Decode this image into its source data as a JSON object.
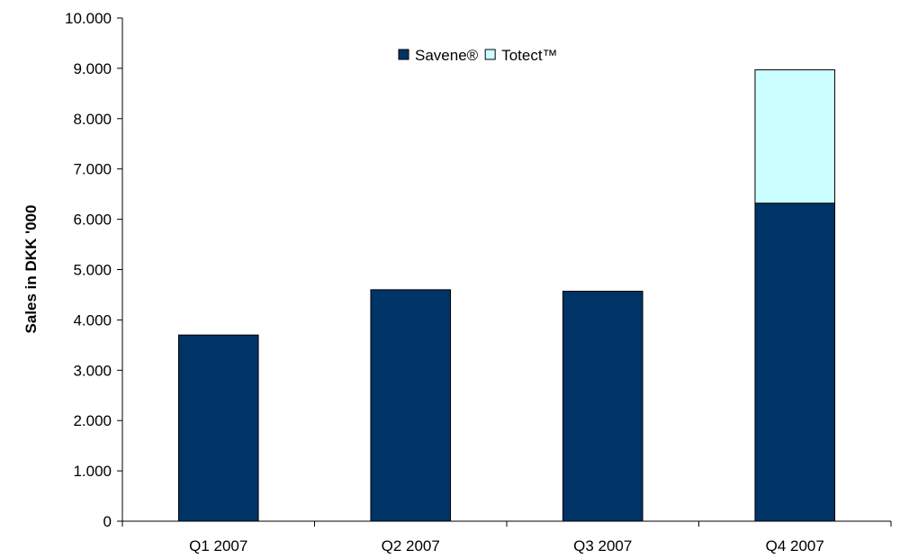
{
  "chart_data": {
    "type": "bar",
    "stacked": true,
    "categories": [
      "Q1 2007",
      "Q2 2007",
      "Q3 2007",
      "Q4 2007"
    ],
    "series": [
      {
        "name": "Savene®",
        "values": [
          3700,
          4600,
          4570,
          6320
        ],
        "color": "#003366"
      },
      {
        "name": "Totect™",
        "values": [
          0,
          0,
          0,
          2650
        ],
        "color": "#ccffff"
      }
    ],
    "title": "",
    "xlabel": "",
    "ylabel": "Sales in DKK '000",
    "ylim": [
      0,
      10000
    ],
    "yticks": [
      {
        "value": 0,
        "label": "0"
      },
      {
        "value": 1000,
        "label": "1.000"
      },
      {
        "value": 2000,
        "label": "2.000"
      },
      {
        "value": 3000,
        "label": "3.000"
      },
      {
        "value": 4000,
        "label": "4.000"
      },
      {
        "value": 5000,
        "label": "5.000"
      },
      {
        "value": 6000,
        "label": "6.000"
      },
      {
        "value": 7000,
        "label": "7.000"
      },
      {
        "value": 8000,
        "label": "8.000"
      },
      {
        "value": 9000,
        "label": "9.000"
      },
      {
        "value": 10000,
        "label": "10.000"
      }
    ],
    "grid": false,
    "legend": {
      "placement": "top-center",
      "orientation": "horizontal"
    }
  }
}
